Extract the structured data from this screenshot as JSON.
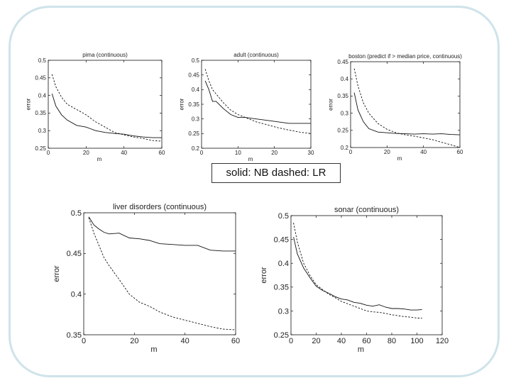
{
  "caption": "solid: NB dashed: LR",
  "chart_data": [
    {
      "type": "line",
      "title": "pima (continuous)",
      "xlabel": "m",
      "ylabel": "error",
      "xlim": [
        0,
        60
      ],
      "ylim": [
        0.25,
        0.5
      ],
      "xticks": [
        0,
        20,
        40,
        60
      ],
      "yticks": [
        0.25,
        0.3,
        0.35,
        0.4,
        0.45,
        0.5
      ],
      "series": [
        {
          "style": "solid",
          "x": [
            2,
            4,
            7,
            10,
            15,
            20,
            25,
            30,
            35,
            40,
            45,
            50,
            55,
            60
          ],
          "y": [
            0.405,
            0.37,
            0.345,
            0.33,
            0.315,
            0.31,
            0.3,
            0.295,
            0.292,
            0.29,
            0.285,
            0.282,
            0.28,
            0.28
          ]
        },
        {
          "style": "dashed",
          "x": [
            2,
            4,
            7,
            10,
            15,
            20,
            25,
            30,
            35,
            40,
            45,
            50,
            55,
            60
          ],
          "y": [
            0.46,
            0.425,
            0.395,
            0.375,
            0.36,
            0.345,
            0.325,
            0.31,
            0.295,
            0.288,
            0.282,
            0.278,
            0.272,
            0.27
          ]
        }
      ]
    },
    {
      "type": "line",
      "title": "adult (continuous)",
      "xlabel": "m",
      "ylabel": "error",
      "xlim": [
        0,
        30
      ],
      "ylim": [
        0.2,
        0.5
      ],
      "xticks": [
        0,
        10,
        20,
        30
      ],
      "yticks": [
        0.2,
        0.25,
        0.3,
        0.35,
        0.4,
        0.45,
        0.5
      ],
      "series": [
        {
          "style": "solid",
          "x": [
            1,
            2,
            3,
            4,
            6,
            8,
            10,
            12,
            15,
            18,
            21,
            24,
            27,
            30
          ],
          "y": [
            0.43,
            0.4,
            0.36,
            0.36,
            0.335,
            0.315,
            0.305,
            0.305,
            0.3,
            0.295,
            0.29,
            0.285,
            0.285,
            0.285
          ]
        },
        {
          "style": "dashed",
          "x": [
            1,
            2,
            3,
            4,
            6,
            8,
            10,
            12,
            15,
            18,
            21,
            24,
            27,
            30
          ],
          "y": [
            0.47,
            0.43,
            0.4,
            0.385,
            0.355,
            0.33,
            0.315,
            0.305,
            0.29,
            0.28,
            0.27,
            0.262,
            0.255,
            0.25
          ]
        }
      ]
    },
    {
      "type": "line",
      "title": "boston (predict if > median price, continuous)",
      "xlabel": "m",
      "ylabel": "error",
      "xlim": [
        0,
        60
      ],
      "ylim": [
        0.2,
        0.45
      ],
      "xticks": [
        0,
        20,
        40,
        60
      ],
      "yticks": [
        0.2,
        0.25,
        0.3,
        0.35,
        0.4,
        0.45
      ],
      "series": [
        {
          "style": "solid",
          "x": [
            2,
            4,
            7,
            10,
            15,
            20,
            25,
            30,
            35,
            40,
            45,
            50,
            55,
            60
          ],
          "y": [
            0.36,
            0.31,
            0.275,
            0.255,
            0.245,
            0.243,
            0.241,
            0.24,
            0.239,
            0.24,
            0.239,
            0.24,
            0.238,
            0.237
          ]
        },
        {
          "style": "dashed",
          "x": [
            2,
            4,
            7,
            10,
            15,
            20,
            25,
            30,
            35,
            40,
            45,
            50,
            55,
            60
          ],
          "y": [
            0.43,
            0.38,
            0.33,
            0.3,
            0.27,
            0.253,
            0.243,
            0.237,
            0.233,
            0.228,
            0.223,
            0.215,
            0.208,
            0.2
          ]
        }
      ]
    },
    {
      "type": "line",
      "title": "liver disorders (continuous)",
      "xlabel": "m",
      "ylabel": "error",
      "xlim": [
        0,
        60
      ],
      "ylim": [
        0.35,
        0.5
      ],
      "xticks": [
        0,
        20,
        40,
        60
      ],
      "yticks": [
        0.35,
        0.4,
        0.45,
        0.5
      ],
      "series": [
        {
          "style": "solid",
          "x": [
            2,
            4,
            6,
            8,
            10,
            14,
            18,
            22,
            26,
            30,
            35,
            40,
            45,
            50,
            55,
            60
          ],
          "y": [
            0.495,
            0.485,
            0.48,
            0.476,
            0.474,
            0.475,
            0.469,
            0.468,
            0.466,
            0.462,
            0.461,
            0.46,
            0.46,
            0.454,
            0.453,
            0.453
          ]
        },
        {
          "style": "dashed",
          "x": [
            2,
            4,
            6,
            8,
            10,
            14,
            18,
            22,
            26,
            30,
            35,
            40,
            45,
            50,
            55,
            60
          ],
          "y": [
            0.494,
            0.475,
            0.46,
            0.445,
            0.435,
            0.418,
            0.4,
            0.39,
            0.385,
            0.378,
            0.372,
            0.368,
            0.364,
            0.36,
            0.357,
            0.356
          ]
        }
      ]
    },
    {
      "type": "line",
      "title": "sonar (continuous)",
      "xlabel": "m",
      "ylabel": "error",
      "xlim": [
        0,
        120
      ],
      "ylim": [
        0.25,
        0.5
      ],
      "xticks": [
        0,
        20,
        40,
        60,
        80,
        100,
        120
      ],
      "yticks": [
        0.25,
        0.3,
        0.35,
        0.4,
        0.45,
        0.5
      ],
      "series": [
        {
          "style": "solid",
          "x": [
            2,
            5,
            10,
            15,
            20,
            25,
            30,
            35,
            40,
            45,
            50,
            55,
            60,
            65,
            70,
            75,
            80,
            85,
            90,
            95,
            100,
            104
          ],
          "y": [
            0.455,
            0.42,
            0.39,
            0.37,
            0.352,
            0.343,
            0.337,
            0.33,
            0.325,
            0.323,
            0.318,
            0.316,
            0.312,
            0.31,
            0.313,
            0.308,
            0.305,
            0.305,
            0.304,
            0.302,
            0.302,
            0.303
          ]
        },
        {
          "style": "dashed",
          "x": [
            2,
            5,
            10,
            15,
            20,
            25,
            30,
            35,
            40,
            45,
            50,
            55,
            60,
            65,
            70,
            75,
            80,
            85,
            90,
            95,
            100,
            104
          ],
          "y": [
            0.485,
            0.445,
            0.4,
            0.375,
            0.355,
            0.345,
            0.335,
            0.328,
            0.32,
            0.315,
            0.31,
            0.305,
            0.3,
            0.298,
            0.297,
            0.295,
            0.292,
            0.29,
            0.288,
            0.287,
            0.285,
            0.285
          ]
        }
      ]
    }
  ]
}
